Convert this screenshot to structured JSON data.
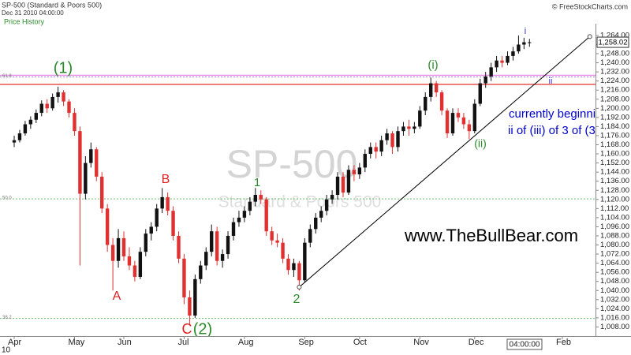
{
  "chart_data": {
    "type": "candlestick",
    "title": "SP-500 (Standard & Poors 500)",
    "subtitle": "Dec 31 2010 04:00:00",
    "panel_label": "Price History",
    "source": "© FreeStockCharts.com",
    "watermark": "SP-500",
    "watermark_subtitle": "Standard & Poors 500",
    "year_label": "10",
    "cursor_time": "04:00:00",
    "last_price": {
      "value": 1258.02,
      "label": "1,258.02"
    },
    "up_color": "#111111",
    "down_color": "#e0302f",
    "categories": [
      "Apr",
      null,
      null,
      null,
      null,
      null,
      null,
      null,
      null,
      null,
      null,
      "May",
      null,
      null,
      null,
      null,
      null,
      null,
      null,
      null,
      "Jun",
      null,
      null,
      null,
      null,
      null,
      null,
      null,
      null,
      null,
      null,
      "Jul",
      null,
      null,
      null,
      null,
      null,
      null,
      null,
      null,
      null,
      null,
      "Aug",
      null,
      null,
      null,
      null,
      null,
      null,
      null,
      null,
      null,
      null,
      "Sep",
      null,
      null,
      null,
      null,
      null,
      null,
      null,
      null,
      null,
      "Oct",
      null,
      null,
      null,
      null,
      null,
      null,
      null,
      null,
      null,
      null,
      "Nov",
      null,
      null,
      null,
      null,
      null,
      null,
      null,
      null,
      null,
      "Dec",
      null,
      null,
      null,
      null,
      null,
      null,
      null,
      null,
      null,
      null,
      null,
      null,
      null,
      null,
      null,
      "Feb",
      null,
      null,
      null,
      null,
      null,
      null
    ],
    "ohlc": [
      [
        1170,
        1176,
        1166,
        1172
      ],
      [
        1172,
        1181,
        1170,
        1178
      ],
      [
        1178,
        1189,
        1176,
        1186
      ],
      [
        1186,
        1193,
        1182,
        1190
      ],
      [
        1190,
        1199,
        1187,
        1196
      ],
      [
        1196,
        1207,
        1193,
        1204
      ],
      [
        1204,
        1208,
        1196,
        1200
      ],
      [
        1200,
        1213,
        1198,
        1210
      ],
      [
        1210,
        1219,
        1205,
        1214
      ],
      [
        1214,
        1216,
        1202,
        1206
      ],
      [
        1206,
        1208,
        1192,
        1196
      ],
      [
        1196,
        1200,
        1176,
        1180
      ],
      [
        1180,
        1184,
        1062,
        1125
      ],
      [
        1125,
        1158,
        1120,
        1152
      ],
      [
        1152,
        1170,
        1148,
        1164
      ],
      [
        1164,
        1166,
        1136,
        1140
      ],
      [
        1140,
        1144,
        1108,
        1112
      ],
      [
        1112,
        1116,
        1074,
        1080
      ],
      [
        1080,
        1086,
        1040,
        1066
      ],
      [
        1066,
        1094,
        1060,
        1086
      ],
      [
        1086,
        1092,
        1066,
        1070
      ],
      [
        1070,
        1078,
        1058,
        1062
      ],
      [
        1062,
        1066,
        1048,
        1052
      ],
      [
        1052,
        1078,
        1050,
        1074
      ],
      [
        1074,
        1094,
        1070,
        1090
      ],
      [
        1090,
        1100,
        1084,
        1096
      ],
      [
        1096,
        1116,
        1092,
        1112
      ],
      [
        1112,
        1130,
        1108,
        1122
      ],
      [
        1122,
        1126,
        1106,
        1110
      ],
      [
        1110,
        1114,
        1084,
        1088
      ],
      [
        1088,
        1092,
        1064,
        1068
      ],
      [
        1068,
        1072,
        1028,
        1034
      ],
      [
        1034,
        1040,
        1010,
        1018
      ],
      [
        1018,
        1054,
        1016,
        1050
      ],
      [
        1050,
        1066,
        1046,
        1062
      ],
      [
        1062,
        1078,
        1058,
        1074
      ],
      [
        1074,
        1098,
        1070,
        1092
      ],
      [
        1092,
        1096,
        1062,
        1066
      ],
      [
        1066,
        1076,
        1060,
        1072
      ],
      [
        1072,
        1092,
        1068,
        1088
      ],
      [
        1088,
        1104,
        1084,
        1100
      ],
      [
        1100,
        1110,
        1096,
        1104
      ],
      [
        1104,
        1114,
        1100,
        1110
      ],
      [
        1110,
        1122,
        1106,
        1118
      ],
      [
        1118,
        1130,
        1114,
        1124
      ],
      [
        1124,
        1128,
        1116,
        1120
      ],
      [
        1120,
        1122,
        1088,
        1092
      ],
      [
        1092,
        1096,
        1080,
        1084
      ],
      [
        1084,
        1090,
        1078,
        1082
      ],
      [
        1082,
        1086,
        1064,
        1068
      ],
      [
        1068,
        1072,
        1054,
        1058
      ],
      [
        1058,
        1068,
        1052,
        1064
      ],
      [
        1064,
        1066,
        1040,
        1049
      ],
      [
        1049,
        1086,
        1047,
        1082
      ],
      [
        1082,
        1098,
        1078,
        1094
      ],
      [
        1094,
        1108,
        1090,
        1104
      ],
      [
        1104,
        1114,
        1100,
        1110
      ],
      [
        1110,
        1124,
        1106,
        1120
      ],
      [
        1120,
        1128,
        1116,
        1124
      ],
      [
        1124,
        1144,
        1120,
        1140
      ],
      [
        1140,
        1144,
        1122,
        1126
      ],
      [
        1126,
        1150,
        1124,
        1146
      ],
      [
        1146,
        1150,
        1136,
        1142
      ],
      [
        1142,
        1152,
        1138,
        1148
      ],
      [
        1148,
        1164,
        1144,
        1160
      ],
      [
        1160,
        1170,
        1156,
        1166
      ],
      [
        1166,
        1170,
        1156,
        1162
      ],
      [
        1162,
        1176,
        1158,
        1172
      ],
      [
        1172,
        1182,
        1168,
        1178
      ],
      [
        1178,
        1180,
        1160,
        1166
      ],
      [
        1166,
        1184,
        1162,
        1180
      ],
      [
        1180,
        1188,
        1176,
        1184
      ],
      [
        1184,
        1190,
        1176,
        1182
      ],
      [
        1182,
        1188,
        1178,
        1184
      ],
      [
        1184,
        1202,
        1182,
        1198
      ],
      [
        1198,
        1214,
        1194,
        1210
      ],
      [
        1210,
        1227,
        1206,
        1222
      ],
      [
        1222,
        1224,
        1210,
        1214
      ],
      [
        1214,
        1216,
        1194,
        1198
      ],
      [
        1198,
        1200,
        1174,
        1178
      ],
      [
        1178,
        1200,
        1176,
        1196
      ],
      [
        1196,
        1200,
        1188,
        1192
      ],
      [
        1192,
        1196,
        1182,
        1186
      ],
      [
        1186,
        1190,
        1173,
        1180
      ],
      [
        1180,
        1208,
        1178,
        1204
      ],
      [
        1204,
        1226,
        1202,
        1222
      ],
      [
        1222,
        1232,
        1218,
        1228
      ],
      [
        1228,
        1240,
        1224,
        1236
      ],
      [
        1236,
        1246,
        1232,
        1242
      ],
      [
        1242,
        1246,
        1236,
        1240
      ],
      [
        1240,
        1250,
        1238,
        1246
      ],
      [
        1246,
        1254,
        1242,
        1250
      ],
      [
        1250,
        1264,
        1248,
        1256
      ],
      [
        1256,
        1262,
        1252,
        1258
      ],
      [
        1258,
        1261,
        1254,
        1258.02
      ],
      null,
      null,
      null,
      null,
      null,
      null,
      null,
      null,
      null,
      null,
      null,
      null
    ],
    "ylim": [
      1000,
      1274
    ],
    "yticks": [
      {
        "value": 1008,
        "label": "1,008.00"
      },
      {
        "value": 1016,
        "label": "1,016.00"
      },
      {
        "value": 1024,
        "label": "1,024.00"
      },
      {
        "value": 1032,
        "label": "1,032.00"
      },
      {
        "value": 1040,
        "label": "1,040.00"
      },
      {
        "value": 1048,
        "label": "1,048.00"
      },
      {
        "value": 1056,
        "label": "1,056.00"
      },
      {
        "value": 1064,
        "label": "1,064.00"
      },
      {
        "value": 1072,
        "label": "1,072.00"
      },
      {
        "value": 1080,
        "label": "1,080.00"
      },
      {
        "value": 1088,
        "label": "1,088.00"
      },
      {
        "value": 1096,
        "label": "1,096.00"
      },
      {
        "value": 1104,
        "label": "1,104.00"
      },
      {
        "value": 1112,
        "label": "1,112.00"
      },
      {
        "value": 1120,
        "label": "1,120.00"
      },
      {
        "value": 1128,
        "label": "1,128.00"
      },
      {
        "value": 1136,
        "label": "1,136.00"
      },
      {
        "value": 1144,
        "label": "1,144.00"
      },
      {
        "value": 1152,
        "label": "1,152.00"
      },
      {
        "value": 1160,
        "label": "1,160.00"
      },
      {
        "value": 1168,
        "label": "1,168.00"
      },
      {
        "value": 1176,
        "label": "1,176.00"
      },
      {
        "value": 1184,
        "label": "1,184.00"
      },
      {
        "value": 1192,
        "label": "1,192.00"
      },
      {
        "value": 1200,
        "label": "1,200.00"
      },
      {
        "value": 1208,
        "label": "1,208.00"
      },
      {
        "value": 1216,
        "label": "1,216.00"
      },
      {
        "value": 1224,
        "label": "1,224.00"
      },
      {
        "value": 1232,
        "label": "1,232.00"
      },
      {
        "value": 1240,
        "label": "1,240.00"
      },
      {
        "value": 1248,
        "label": "1,248.00"
      },
      {
        "value": 1256,
        "label": "1,256.00"
      },
      {
        "value": 1264,
        "label": "1,264.00"
      }
    ],
    "hlines": [
      {
        "value": 1229,
        "color": "#e98be9"
      },
      {
        "value": 1221,
        "color": "#e0302f"
      }
    ],
    "fib_levels": [
      {
        "value": 1227.5,
        "label": "61.8",
        "color": "#9b7fe0"
      },
      {
        "value": 1120.5,
        "label": "50.0",
        "color": "#6cbf6c"
      },
      {
        "value": 1015.5,
        "label": "38.2",
        "color": "#6cbf6c"
      }
    ],
    "trendline": {
      "x": [
        52,
        105
      ],
      "y": [
        1043,
        1263
      ],
      "color": "#000000"
    },
    "annotations": [
      {
        "text": "(1)",
        "color": "#2a8a2a"
      },
      {
        "text": "A",
        "color": "#e02020"
      },
      {
        "text": "B",
        "color": "#e02020"
      },
      {
        "text": "1",
        "color": "#2a8a2a"
      },
      {
        "text": "C",
        "color": "#e02020"
      },
      {
        "text": "(2)",
        "color": "#2a8a2a"
      },
      {
        "text": "2",
        "color": "#2a8a2a"
      },
      {
        "text": "(i)",
        "color": "#2a8a2a"
      },
      {
        "text": "(ii)",
        "color": "#2a8a2a"
      },
      {
        "text": "i",
        "color": "#3a3ad0"
      },
      {
        "text": "ii",
        "color": "#3a3ad0"
      },
      {
        "text": "currently beginnin",
        "color": "#0000cc"
      },
      {
        "text": "ii of (iii) of 3 of (3",
        "color": "#0000cc"
      },
      {
        "text": "www.TheBullBear.com",
        "color": "#000000"
      }
    ]
  }
}
